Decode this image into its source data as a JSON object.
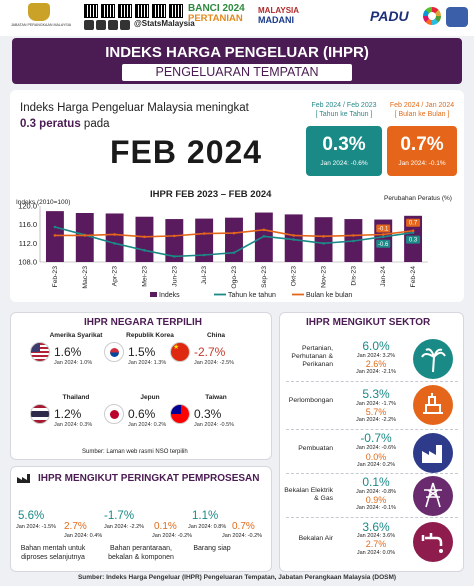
{
  "brand": {
    "dosm_text": "JABATAN PERANGKAAN MALAYSIA",
    "social_handle": "@StatsMalaysia",
    "banci_line1": "BANCI 2024",
    "banci_line2": "PERTANIAN",
    "madani_line1": "MALAYSIA",
    "madani_line2": "MADANI",
    "padu": "PADU"
  },
  "header": {
    "title": "INDEKS HARGA PENGELUAR (IHPR)",
    "subtitle": "PENGELUARAN TEMPATAN"
  },
  "headline": {
    "line1": "Indeks Harga Pengeluar Malaysia meningkat",
    "pct": "0.3 peratus",
    "pada": " pada",
    "month": "FEB 2024"
  },
  "yoy": {
    "caption": "Feb 2024 / Feb 2023",
    "caption2": "[ Tahun ke Tahun ]",
    "value": "0.3%",
    "sub": "Jan 2024: -0.6%",
    "color": "#1a8a87"
  },
  "mom": {
    "caption": "Feb 2024 / Jan 2024",
    "caption2": "[ Bulan ke Bulan ]",
    "value": "0.7%",
    "sub": "Jan 2024: -0.1%",
    "color": "#e5661a"
  },
  "chart_data": {
    "type": "bar",
    "title": "IHPR FEB 2023 – FEB 2024",
    "ylabel_left": "Indeks (2010=100)",
    "ylabel_right": "Perubahan Peratus (%)",
    "left_ticks": [
      "120.0",
      "116.0",
      "112.0",
      "108.0"
    ],
    "ylim_left": [
      108,
      120
    ],
    "ylim_right": [
      -6,
      6
    ],
    "categories": [
      "Feb-23",
      "Mac-23",
      "Apr-23",
      "Mei-23",
      "Jun-23",
      "Jul-23",
      "Ogo-23",
      "Sep-23",
      "Okt-23",
      "Nov-23",
      "Dis-23",
      "Jan-24",
      "Feb-24"
    ],
    "series": [
      {
        "name": "Indeks",
        "values": [
          118.9,
          118.5,
          118.4,
          117.7,
          117.2,
          117.3,
          117.5,
          118.6,
          118.2,
          117.6,
          117.2,
          117.1,
          117.9
        ],
        "color": "#5a1a5e"
      },
      {
        "name": "Tahun ke tahun",
        "values": [
          1.5,
          -0.2,
          -2.0,
          -3.5,
          -4.8,
          -4.5,
          -4.0,
          -0.5,
          -1.2,
          -2.0,
          -1.5,
          -0.6,
          0.3
        ],
        "color": "#1a8a87"
      },
      {
        "name": "Bulan ke bulan",
        "values": [
          -0.3,
          -0.3,
          -0.1,
          -0.6,
          -0.4,
          0.1,
          0.2,
          0.9,
          -0.3,
          -0.5,
          -0.3,
          -0.1,
          0.7
        ],
        "color": "#e5661a"
      }
    ],
    "annotations": [
      "-0.1",
      "-0.6",
      "0.7",
      "0.3"
    ],
    "legend": [
      "Indeks",
      "Tahun ke tahun",
      "Bulan ke bulan"
    ]
  },
  "negara": {
    "title": "IHPR NEGARA TERPILIH",
    "countries": [
      {
        "name": "Amerika Syarikat",
        "value": "1.6%",
        "sub": "Jan 2024: 1.0%"
      },
      {
        "name": "Republik Korea",
        "value": "1.5%",
        "sub": "Jan 2024: 1.3%"
      },
      {
        "name": "China",
        "value": "-2.7%",
        "sub": "Jan 2024: -2.5%"
      },
      {
        "name": "Thailand",
        "value": "1.2%",
        "sub": "Jan 2024: 0.3%"
      },
      {
        "name": "Jepun",
        "value": "0.6%",
        "sub": "Jan 2024: 0.2%"
      },
      {
        "name": "Taiwan",
        "value": "0.3%",
        "sub": "Jan 2024: -0.5%"
      }
    ],
    "source": "Sumber: Laman web rasmi NSO terpilih"
  },
  "sektor": {
    "title": "IHPR MENGIKUT SEKTOR",
    "items": [
      {
        "name": "Pertanian, Perhutanan & Perikanan",
        "yoy": "6.0%",
        "yoy_sub": "Jan 2024: 3.2%",
        "mom": "2.6%",
        "mom_sub": "Jan 2024: -2.1%"
      },
      {
        "name": "Perlombongan",
        "yoy": "5.3%",
        "yoy_sub": "Jan 2024: -1.7%",
        "mom": "5.7%",
        "mom_sub": "Jan 2024: -2.2%"
      },
      {
        "name": "Pembuatan",
        "yoy": "-0.7%",
        "yoy_sub": "Jan 2024: -0.6%",
        "mom": "0.0%",
        "mom_sub": "Jan 2024: 0.2%"
      },
      {
        "name": "Bekalan Elektrik & Gas",
        "yoy": "0.1%",
        "yoy_sub": "Jan 2024: -0.8%",
        "mom": "0.9%",
        "mom_sub": "Jan 2024: -0.1%"
      },
      {
        "name": "Bekalan Air",
        "yoy": "3.6%",
        "yoy_sub": "Jan 2024: 3.6%",
        "mom": "2.7%",
        "mom_sub": "Jan 2024: 0.0%"
      }
    ]
  },
  "proses": {
    "title": "IHPR MENGIKUT PERINGKAT PEMPROSESAN",
    "items": [
      {
        "label": "Bahan mentah untuk diproses selanjutnya",
        "yoy": "5.6%",
        "yoy_sub": "Jan 2024: -1.5%",
        "mom": "2.7%",
        "mom_sub": "Jan 2024: 0.4%"
      },
      {
        "label": "Bahan perantaraan, bekalan & komponen",
        "yoy": "-1.7%",
        "yoy_sub": "Jan 2024: -2.2%",
        "mom": "0.1%",
        "mom_sub": "Jan 2024: -0.2%"
      },
      {
        "label": "Barang siap",
        "yoy": "1.1%",
        "yoy_sub": "Jan 2024: 0.8%",
        "mom": "0.7%",
        "mom_sub": "Jan 2024: -0.2%"
      }
    ]
  },
  "footer": "Sumber: Indeks Harga Pengeluar (IHPR) Pengeluaran Tempatan, Jabatan Perangkaan Malaysia (DOSM)"
}
